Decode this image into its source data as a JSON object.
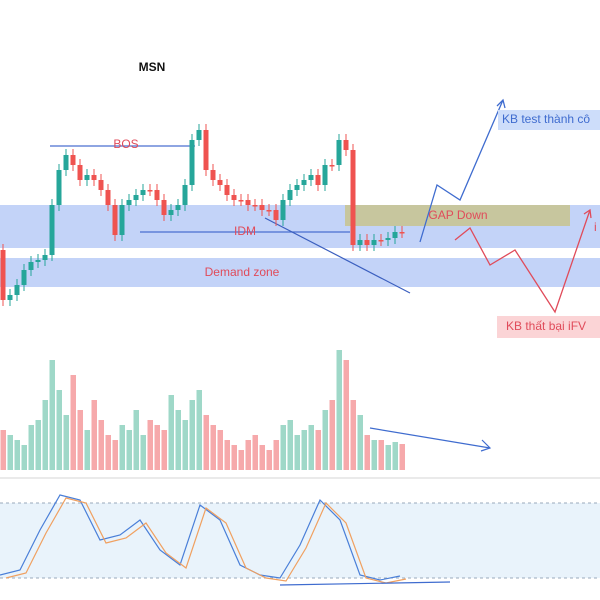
{
  "title": "MSN",
  "annotations": {
    "bos": "BOS",
    "idm": "IDM",
    "gap": "GAP Down",
    "demand": "Demand zone",
    "success": "KB test thành cô",
    "fail": "KB thất bại iFV",
    "edge": "i"
  }
}
